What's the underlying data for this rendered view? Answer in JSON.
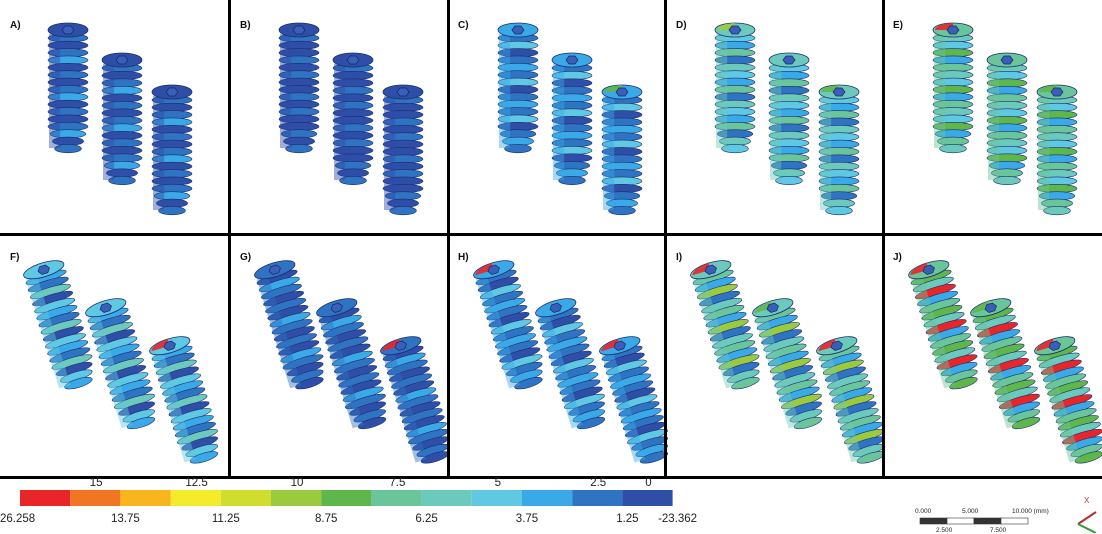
{
  "panels": [
    "A)",
    "B)",
    "C)",
    "D)",
    "E)",
    "F)",
    "G)",
    "H)",
    "I)",
    "J)"
  ],
  "colorbar": {
    "colors": [
      "#e8262a",
      "#f27521",
      "#f9b51e",
      "#f4ec2a",
      "#cfdd2f",
      "#9bcb3c",
      "#5fb64a",
      "#6bc59a",
      "#6ccabd",
      "#5fc8e3",
      "#3aa9e8",
      "#2f73c3",
      "#2e4ea8"
    ],
    "bottom_labels": [
      "26.258",
      "13.75",
      "11.25",
      "8.75",
      "6.25",
      "3.75",
      "1.25",
      "-23.362"
    ],
    "top_labels": [
      "15",
      "12.5",
      "10",
      "7.5",
      "5",
      "2.5",
      "0"
    ]
  },
  "scale_bar": {
    "top_labels": [
      "0.000",
      "5.000",
      "10.000 (mm)"
    ],
    "bottom_labels": [
      "2.500",
      "7.500"
    ]
  },
  "axis": {
    "x_label": "X"
  }
}
